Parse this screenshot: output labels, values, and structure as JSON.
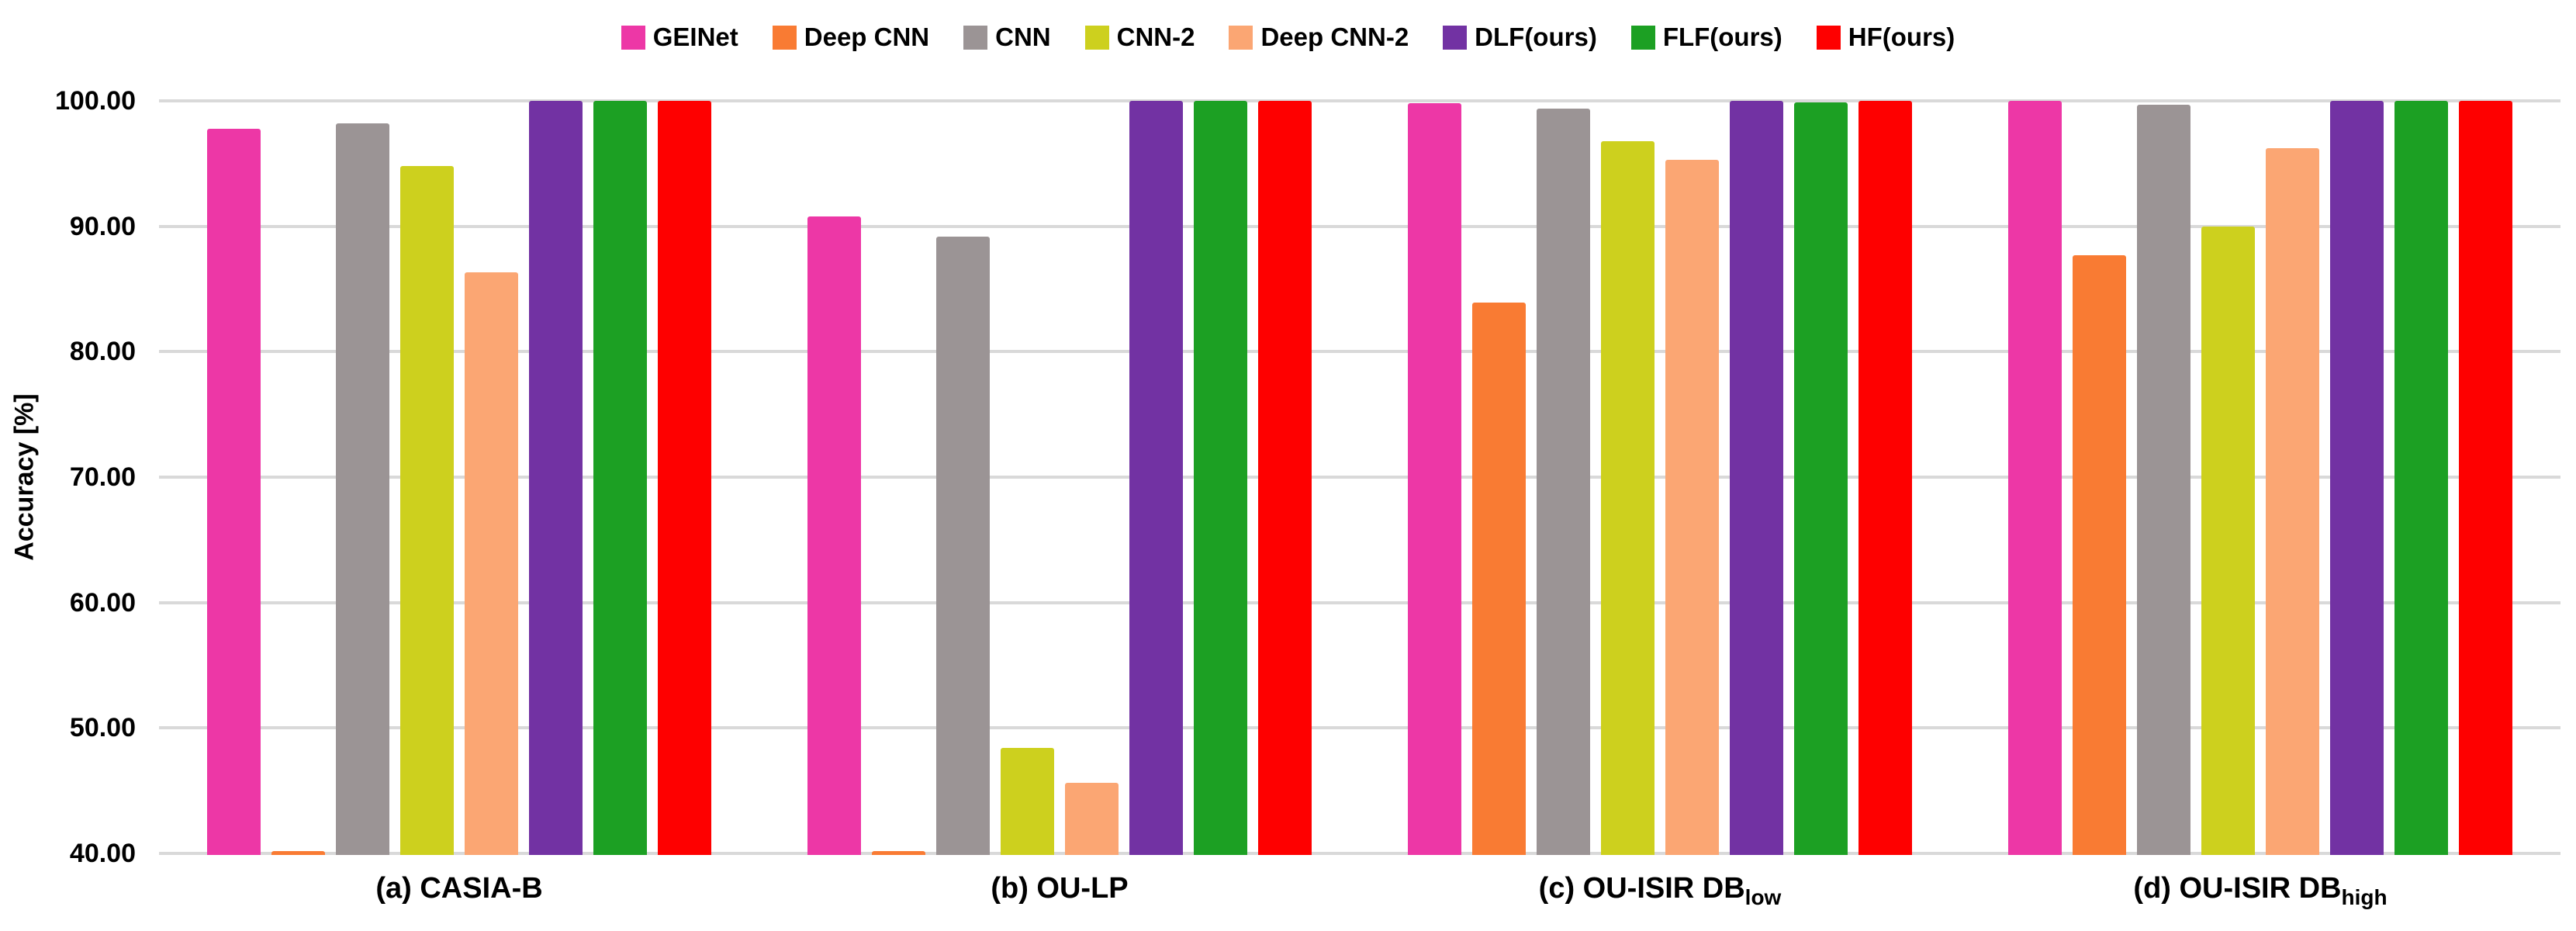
{
  "chart_data": {
    "type": "bar",
    "title": "",
    "xlabel": "",
    "ylabel": "Accuracy [%]",
    "ylim": [
      40,
      100
    ],
    "ytick_step": 10,
    "ytick_labels": [
      "100.00",
      "90.00",
      "80.00",
      "70.00",
      "60.00",
      "50.00",
      "40.00"
    ],
    "grid": true,
    "legend_position": "top-center",
    "categories": [
      {
        "label": "(a) CASIA-B",
        "sub": ""
      },
      {
        "label": "(b) OU-LP",
        "sub": ""
      },
      {
        "label": "(c) OU-ISIR DB",
        "sub": "low"
      },
      {
        "label": "(d) OU-ISIR DB",
        "sub": "high"
      }
    ],
    "series": [
      {
        "name": "GEINet",
        "color": "#ED37A6",
        "values": [
          97.8,
          90.8,
          99.8,
          100.0
        ]
      },
      {
        "name": "Deep CNN",
        "color": "#F97B33",
        "values": [
          40.2,
          40.2,
          83.9,
          87.7
        ]
      },
      {
        "name": "CNN",
        "color": "#9B9495",
        "values": [
          98.2,
          89.2,
          99.4,
          99.7
        ]
      },
      {
        "name": "CNN-2",
        "color": "#CDD01E",
        "values": [
          94.8,
          48.4,
          96.8,
          90.0
        ]
      },
      {
        "name": "Deep CNN-2",
        "color": "#FBA673",
        "values": [
          86.3,
          45.6,
          95.3,
          96.2
        ]
      },
      {
        "name": "DLF(ours)",
        "color": "#7232A3",
        "values": [
          100.0,
          100.0,
          100.0,
          100.0
        ]
      },
      {
        "name": "FLF(ours)",
        "color": "#1CA023",
        "values": [
          100.0,
          100.0,
          99.9,
          100.0
        ]
      },
      {
        "name": "HF(ours)",
        "color": "#FE0000",
        "values": [
          100.0,
          100.0,
          100.0,
          100.0
        ]
      }
    ],
    "colors": {
      "gridline": "#D9D9D9",
      "text": "#000000",
      "background": "#FFFFFF"
    }
  }
}
